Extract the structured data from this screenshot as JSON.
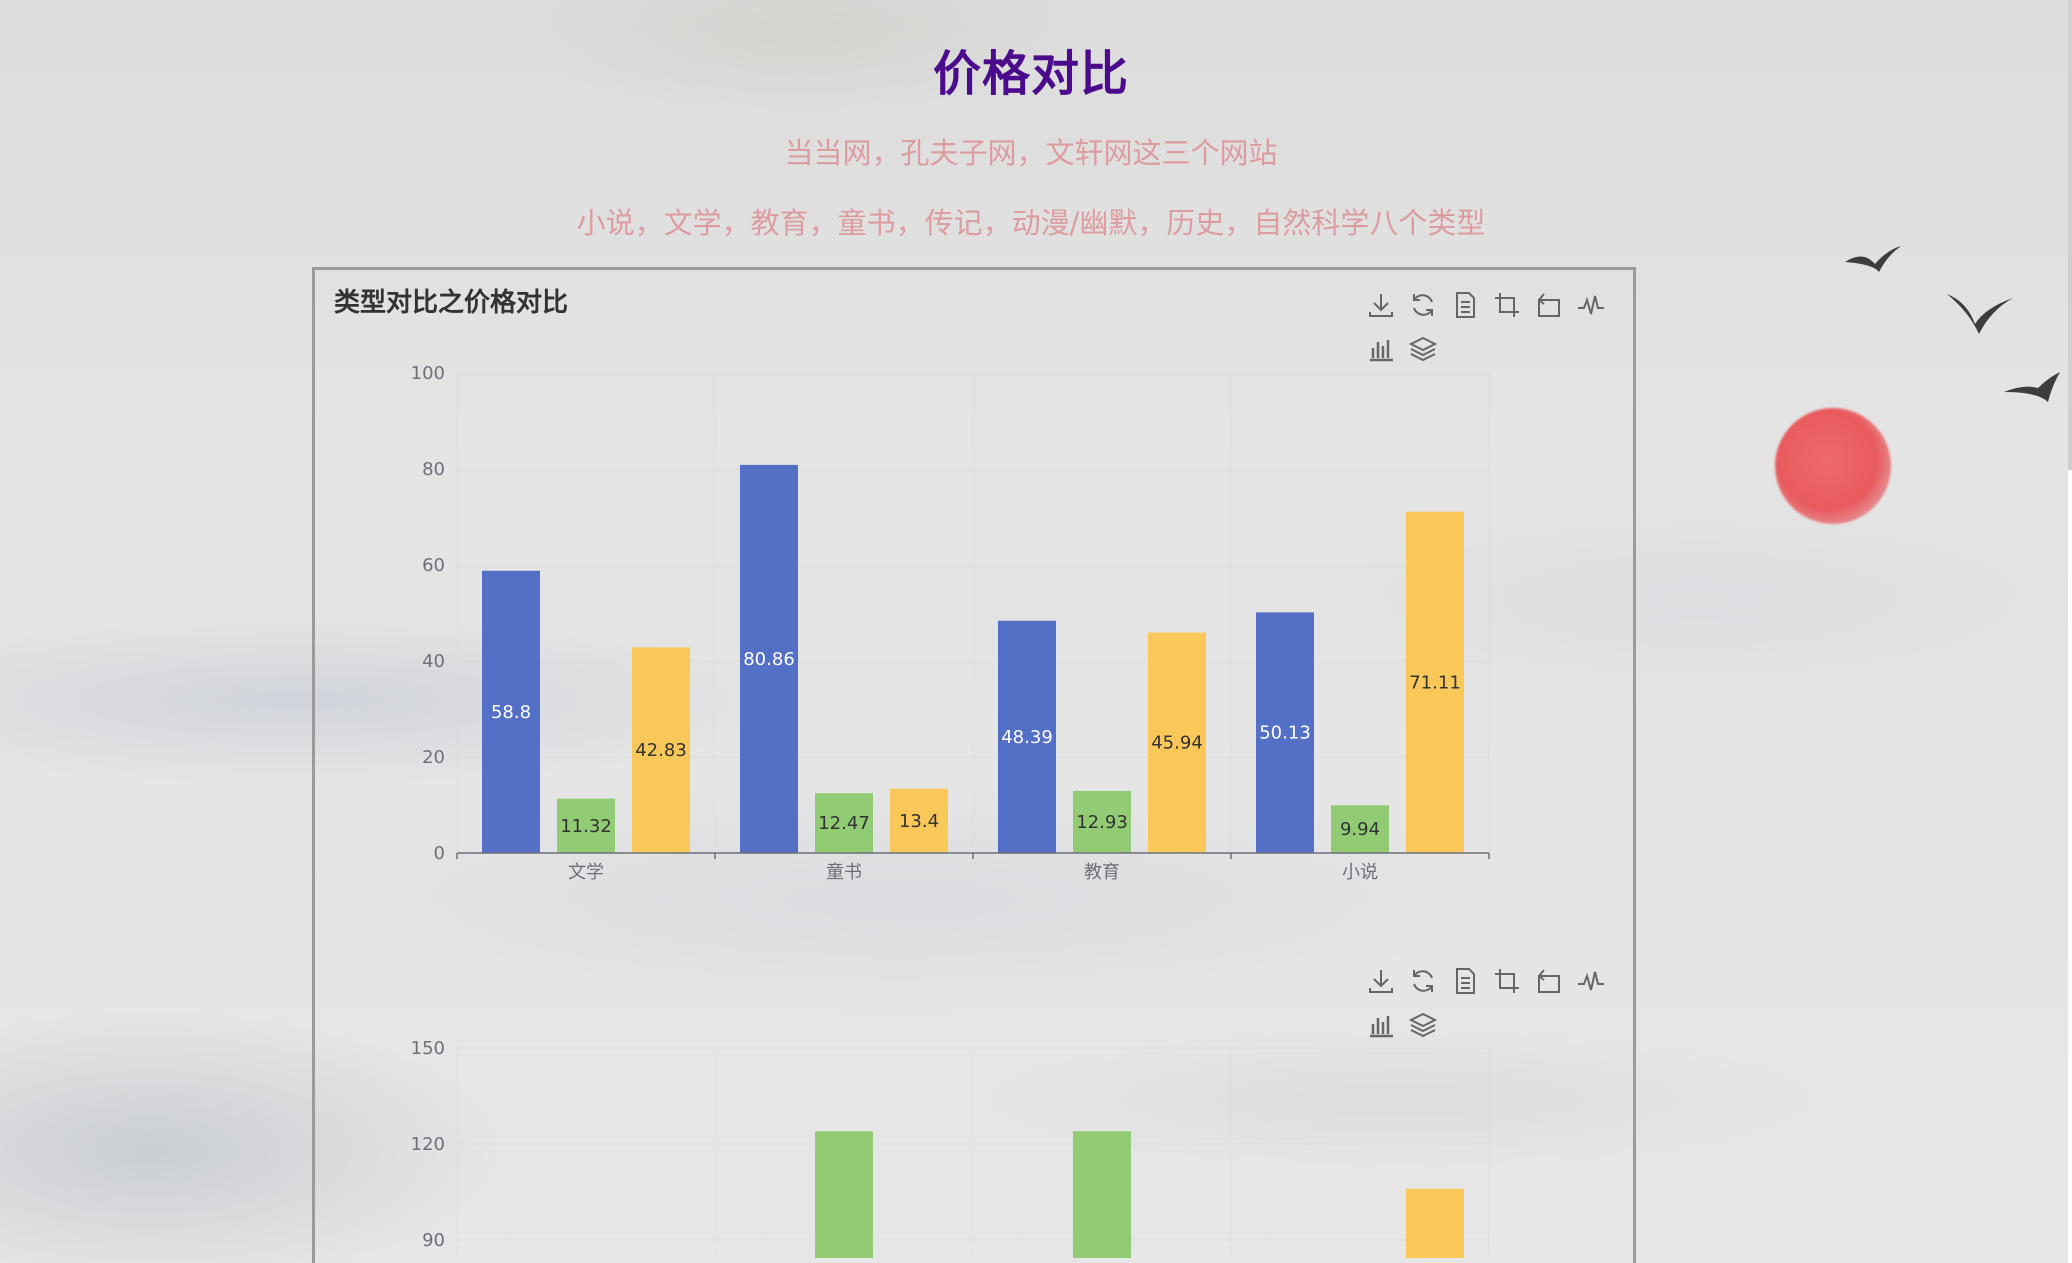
{
  "page": {
    "title": "价格对比",
    "subtitle1": "当当网，孔夫子网，文轩网这三个网站",
    "subtitle2": "小说，文学，教育，童书，传记，动漫/幽默，历史，自然科学八个类型"
  },
  "colors": {
    "title": "#4b0b8c",
    "subtitle": "#dd9c9f",
    "series": [
      "#5470c6",
      "#91cc75",
      "#fac858"
    ]
  },
  "toolbox_icons": [
    "download-icon",
    "restore-icon",
    "data-view-icon",
    "zoom-icon",
    "zoom-reset-icon",
    "line-chart-icon",
    "bar-chart-icon",
    "stack-icon"
  ],
  "chart_data": [
    {
      "type": "bar",
      "title": "类型对比之价格对比",
      "categories": [
        "文学",
        "童书",
        "教育",
        "小说"
      ],
      "series": [
        {
          "values": [
            58.8,
            80.86,
            48.39,
            50.13
          ]
        },
        {
          "values": [
            11.32,
            12.47,
            12.93,
            9.94
          ]
        },
        {
          "values": [
            42.83,
            13.4,
            45.94,
            71.11
          ]
        }
      ],
      "ylim": [
        0,
        100
      ],
      "yticks": [
        "0",
        "20",
        "40",
        "60",
        "80",
        "100"
      ],
      "grid": true,
      "data_labels": true
    },
    {
      "type": "bar",
      "title": "",
      "categories": [
        "",
        "",
        "",
        ""
      ],
      "series": [
        {
          "values": [
            null,
            null,
            null,
            null
          ]
        },
        {
          "values": [
            null,
            124,
            124,
            null
          ]
        },
        {
          "values": [
            null,
            null,
            null,
            106
          ]
        }
      ],
      "ylim": [
        0,
        150
      ],
      "yticks": [
        "90",
        "120",
        "150"
      ],
      "grid": true,
      "data_labels": false
    }
  ]
}
